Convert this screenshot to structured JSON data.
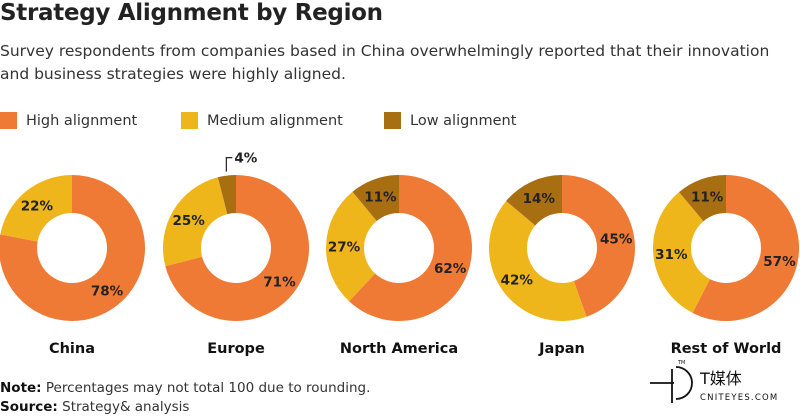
{
  "title": "Strategy Alignment by Region",
  "subtitle": "Survey respondents from companies based in China overwhelmingly reported that their innovation and business strategies were highly aligned.",
  "legend": [
    {
      "label": "High alignment",
      "color": "#EF7A35"
    },
    {
      "label": "Medium alignment",
      "color": "#EFB61C"
    },
    {
      "label": "Low alignment",
      "color": "#A86E12"
    }
  ],
  "chart_data": {
    "type": "pie",
    "style": "donut",
    "series_names": [
      "High alignment",
      "Medium alignment",
      "Low alignment"
    ],
    "charts": [
      {
        "region": "China",
        "values": [
          78,
          22,
          0
        ],
        "labels": [
          "78%",
          "22%",
          ""
        ]
      },
      {
        "region": "Europe",
        "values": [
          71,
          25,
          4
        ],
        "labels": [
          "71%",
          "25%",
          "4%"
        ]
      },
      {
        "region": "North America",
        "values": [
          62,
          27,
          11
        ],
        "labels": [
          "62%",
          "27%",
          "11%"
        ]
      },
      {
        "region": "Japan",
        "values": [
          45,
          42,
          14
        ],
        "labels": [
          "45%",
          "42%",
          "14%"
        ]
      },
      {
        "region": "Rest of World",
        "values": [
          57,
          31,
          11
        ],
        "labels": [
          "57%",
          "31%",
          "11%"
        ]
      }
    ]
  },
  "notes": {
    "note_label": "Note:",
    "note_text": " Percentages may not total 100 due to rounding.",
    "source_label": "Source:",
    "source_text": " Strategy& analysis"
  },
  "brand": {
    "name": "T媒体",
    "url": "CNITEYES.COM",
    "tm": "TM"
  }
}
